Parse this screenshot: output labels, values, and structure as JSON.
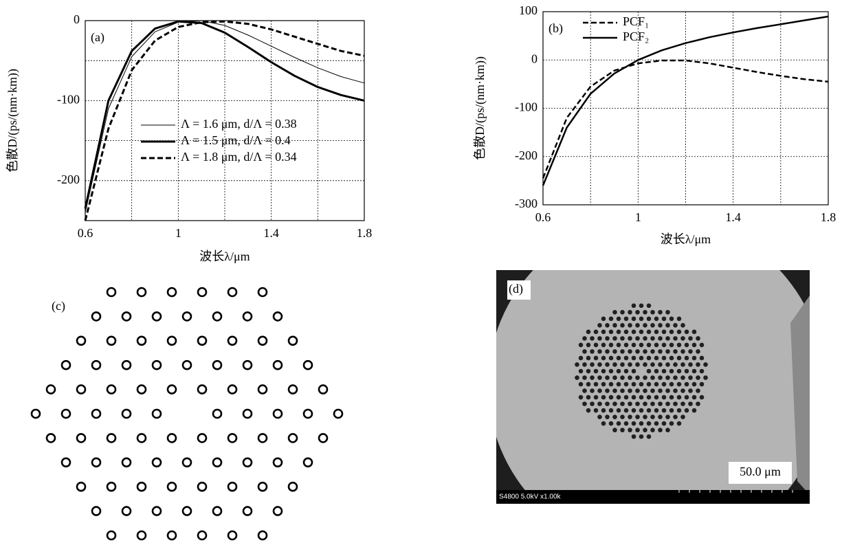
{
  "chart_data": [
    {
      "type": "line",
      "panel_label": "(a)",
      "xlabel": "波长λ/μm",
      "ylabel": "色散D/(ps/(nm·km))",
      "x": [
        0.6,
        0.7,
        0.8,
        0.9,
        1.0,
        1.1,
        1.2,
        1.3,
        1.4,
        1.5,
        1.6,
        1.7,
        1.8
      ],
      "series": [
        {
          "name": "Λ = 1.6 μm, d/Λ = 0.38",
          "color": "#000000",
          "line_width": 1,
          "dashed": false,
          "values": [
            -240,
            -110,
            -45,
            -14,
            -2,
            0,
            -6,
            -18,
            -32,
            -46,
            -59,
            -70,
            -78
          ]
        },
        {
          "name": "Λ = 1.5 μm, d/Λ = 0.4",
          "color": "#000000",
          "line_width": 3,
          "dashed": false,
          "values": [
            -235,
            -100,
            -38,
            -10,
            -1,
            -3,
            -15,
            -33,
            -52,
            -69,
            -83,
            -93,
            -100
          ]
        },
        {
          "name": "Λ = 1.8 μm, d/Λ = 0.34",
          "color": "#000000",
          "line_width": 3,
          "dashed": true,
          "values": [
            -250,
            -135,
            -62,
            -25,
            -8,
            -2,
            -1,
            -4,
            -11,
            -20,
            -29,
            -38,
            -44
          ]
        }
      ],
      "xlim": [
        0.6,
        1.8
      ],
      "ylim": [
        -250,
        0
      ],
      "xticks": [
        0.6,
        1.0,
        1.4,
        1.8
      ],
      "yticks": [
        0,
        -100,
        -200
      ],
      "xminor": [
        0.8,
        1.2,
        1.6
      ],
      "yminor": [
        -50,
        -150
      ],
      "grid": true,
      "legend": "center right"
    },
    {
      "type": "line",
      "panel_label": "(b)",
      "xlabel": "波长λ/μm",
      "ylabel": "色散D/(ps/(nm·km))",
      "x": [
        0.6,
        0.7,
        0.8,
        0.9,
        1.0,
        1.1,
        1.2,
        1.3,
        1.4,
        1.5,
        1.6,
        1.7,
        1.8
      ],
      "series": [
        {
          "name": "PCF₁",
          "color": "#000000",
          "line_width": 2.5,
          "dashed": true,
          "values": [
            -245,
            -120,
            -55,
            -22,
            -7,
            -1,
            -1,
            -7,
            -16,
            -25,
            -33,
            -40,
            -45
          ]
        },
        {
          "name": "PCF₂",
          "color": "#000000",
          "line_width": 2.5,
          "dashed": false,
          "values": [
            -260,
            -140,
            -70,
            -28,
            0,
            20,
            35,
            47,
            57,
            66,
            74,
            82,
            90
          ]
        }
      ],
      "xlim": [
        0.6,
        1.8
      ],
      "ylim": [
        -300,
        100
      ],
      "xticks": [
        0.6,
        1.0,
        1.4,
        1.8
      ],
      "yticks": [
        100,
        0,
        -100,
        -200,
        -300
      ],
      "xminor": [
        0.8,
        1.2,
        1.6
      ],
      "yminor": [],
      "grid": true,
      "legend": "upper left"
    }
  ],
  "panels": {
    "c": {
      "label": "(c)"
    },
    "d": {
      "label": "(d)",
      "scale_bar": "50.0 μm",
      "info": "S4800 5.0kV x1.00k"
    }
  }
}
